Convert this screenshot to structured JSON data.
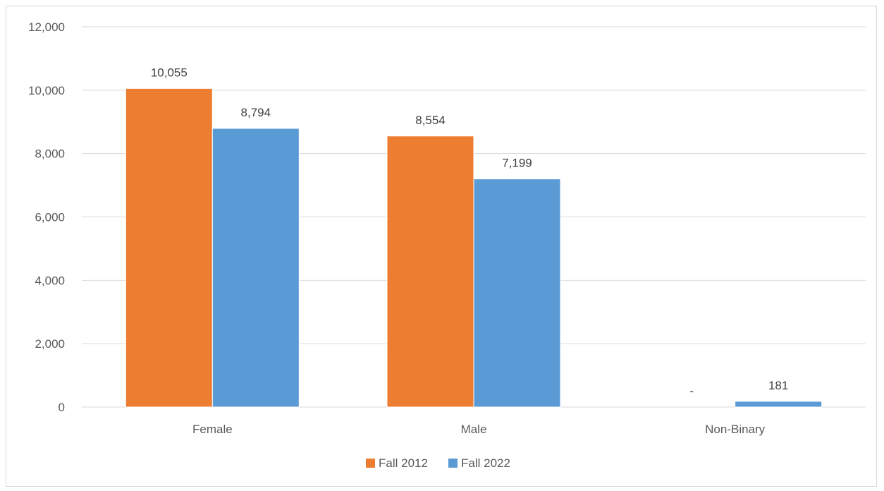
{
  "chart_data": {
    "type": "bar",
    "categories": [
      "Female",
      "Male",
      "Non-Binary"
    ],
    "series": [
      {
        "name": "Fall 2012",
        "values": [
          10055,
          8554,
          0
        ],
        "labels": [
          "10,055",
          "8,554",
          "-"
        ],
        "color": "#ED7D31"
      },
      {
        "name": "Fall 2022",
        "values": [
          8794,
          7199,
          181
        ],
        "labels": [
          "8,794",
          "7,199",
          "181"
        ],
        "color": "#5B9BD5"
      }
    ],
    "yticks": [
      "0",
      "2,000",
      "4,000",
      "6,000",
      "8,000",
      "10,000",
      "12,000"
    ],
    "ylim": [
      0,
      12000
    ],
    "grid": true,
    "legend_position": "bottom",
    "title": "",
    "xlabel": "",
    "ylabel": ""
  },
  "colors": {
    "grid": "#d9d9d9",
    "axis": "#d9d9d9"
  }
}
